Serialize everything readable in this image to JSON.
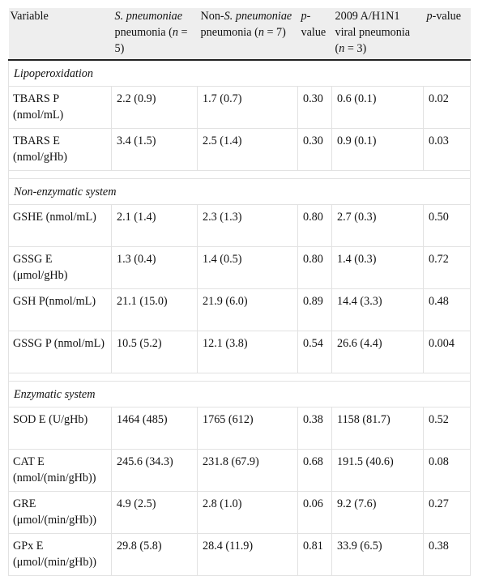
{
  "table": {
    "headers": {
      "variable": "Variable",
      "sp_name": "S. pneumoniae",
      "sp_suffix": " pneumonia (",
      "sp_n": "n",
      "sp_end": " = 5)",
      "nonsp_prefix": "Non-",
      "nonsp_name": "S. pneumoniae",
      "nonsp_suffix": " pneumonia (",
      "nonsp_n": "n",
      "nonsp_end": " = 7)",
      "p1_p": "p",
      "p1_rest": "-value",
      "h1n1_main": "2009 A/H1N1 viral pneumonia (",
      "h1n1_n": "n",
      "h1n1_end": " = 3)",
      "p2_p": "p",
      "p2_rest": "-value"
    },
    "sections": [
      {
        "title": "Lipoperoxidation",
        "rows": [
          {
            "variable": "TBARS P (nmol/mL)",
            "sp": "2.2 (0.9)",
            "nonsp": "1.7 (0.7)",
            "p1": "0.30",
            "h1n1": "0.6 (0.1)",
            "p2": "0.02"
          },
          {
            "variable": "TBARS E (nmol/gHb)",
            "sp": "3.4 (1.5)",
            "nonsp": "2.5 (1.4)",
            "p1": "0.30",
            "h1n1": "0.9 (0.1)",
            "p2": "0.03"
          }
        ]
      },
      {
        "title": "Non-enzymatic system",
        "rows": [
          {
            "variable": "GSHE (nmol/mL)",
            "sp": "2.1 (1.4)",
            "nonsp": "2.3 (1.3)",
            "p1": "0.80",
            "h1n1": "2.7 (0.3)",
            "p2": "0.50"
          },
          {
            "variable": "GSSG E (μmol/gHb)",
            "sp": "1.3 (0.4)",
            "nonsp": "1.4 (0.5)",
            "p1": "0.80",
            "h1n1": "1.4 (0.3)",
            "p2": "0.72"
          },
          {
            "variable": "GSH P(nmol/mL)",
            "sp": "21.1 (15.0)",
            "nonsp": "21.9 (6.0)",
            "p1": "0.89",
            "h1n1": "14.4 (3.3)",
            "p2": "0.48"
          },
          {
            "variable": "GSSG P (nmol/mL)",
            "sp": "10.5 (5.2)",
            "nonsp": "12.1 (3.8)",
            "p1": "0.54",
            "h1n1": "26.6 (4.4)",
            "p2": "0.004"
          }
        ]
      },
      {
        "title": "Enzymatic system",
        "rows": [
          {
            "variable": "SOD E (U/gHb)",
            "sp": "1464 (485)",
            "nonsp": "1765 (612)",
            "p1": "0.38",
            "h1n1": "1158 (81.7)",
            "p2": "0.52"
          },
          {
            "variable": "CAT E (nmol/(min/gHb))",
            "sp": "245.6 (34.3)",
            "nonsp": "231.8 (67.9)",
            "p1": "0.68",
            "h1n1": "191.5 (40.6)",
            "p2": "0.08"
          },
          {
            "variable": "GRE (μmol/(min/gHb))",
            "sp": "4.9 (2.5)",
            "nonsp": "2.8 (1.0)",
            "p1": "0.06",
            "h1n1": "9.2 (7.6)",
            "p2": "0.27"
          },
          {
            "variable": "GPx E (μmol/(min/gHb))",
            "sp": "29.8 (5.8)",
            "nonsp": "28.4 (11.9)",
            "p1": "0.81",
            "h1n1": "33.9 (6.5)",
            "p2": "0.38"
          }
        ]
      }
    ]
  }
}
